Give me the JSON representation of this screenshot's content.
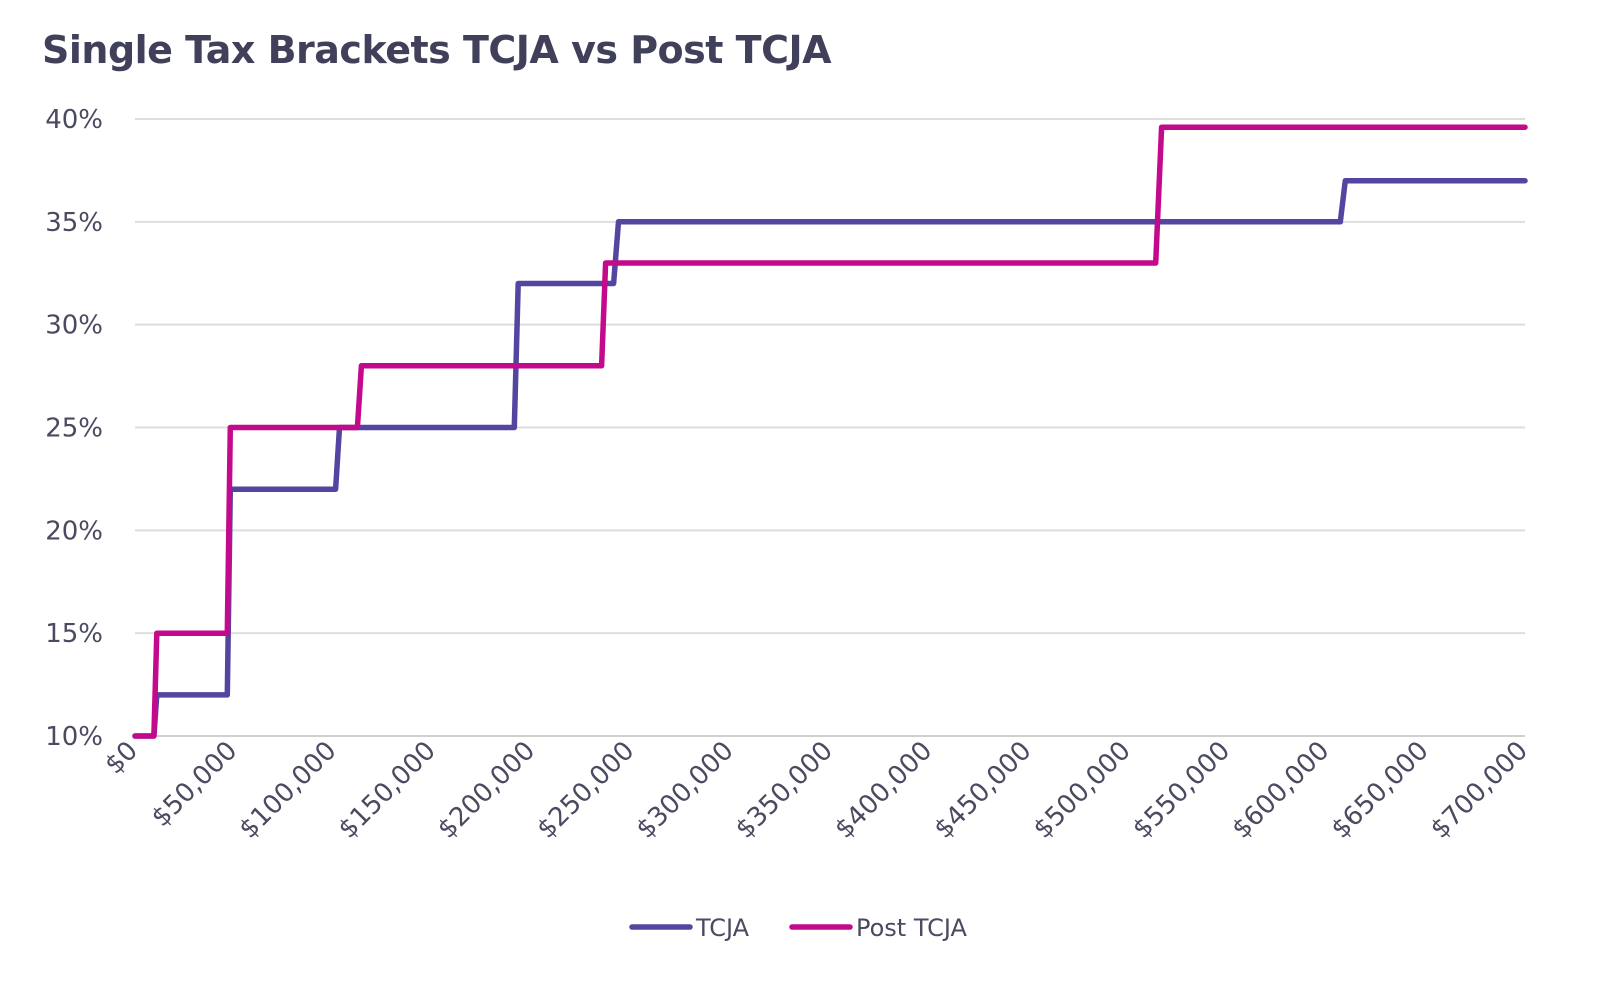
{
  "chart_data": {
    "type": "line",
    "step": true,
    "title": "Single Tax Brackets TCJA vs Post TCJA",
    "xlabel": "",
    "ylabel": "",
    "xlim": [
      0,
      700000
    ],
    "ylim": [
      10,
      40
    ],
    "grid": true,
    "legend": "bottom",
    "x_ticks": [
      "$0",
      "$50,000",
      "$100,000",
      "$150,000",
      "$200,000",
      "$250,000",
      "$300,000",
      "$350,000",
      "$400,000",
      "$450,000",
      "$500,000",
      "$550,000",
      "$600,000",
      "$650,000",
      "$700,000"
    ],
    "y_ticks": [
      "10%",
      "15%",
      "20%",
      "25%",
      "30%",
      "35%",
      "40%"
    ],
    "series": [
      {
        "name": "TCJA",
        "color": "#5246a0",
        "points": [
          [
            0,
            10
          ],
          [
            9500,
            10
          ],
          [
            11000,
            12
          ],
          [
            46500,
            12
          ],
          [
            48000,
            22
          ],
          [
            101000,
            22
          ],
          [
            103000,
            25
          ],
          [
            191000,
            25
          ],
          [
            193000,
            32
          ],
          [
            241000,
            32
          ],
          [
            243500,
            35
          ],
          [
            607000,
            35
          ],
          [
            609500,
            37
          ],
          [
            700000,
            37
          ]
        ]
      },
      {
        "name": "Post TCJA",
        "color": "#c30a8c",
        "points": [
          [
            0,
            10
          ],
          [
            9500,
            10
          ],
          [
            11000,
            15
          ],
          [
            46500,
            15
          ],
          [
            48000,
            25
          ],
          [
            112000,
            25
          ],
          [
            114000,
            28
          ],
          [
            235000,
            28
          ],
          [
            237000,
            33
          ],
          [
            514000,
            33
          ],
          [
            517000,
            39.6
          ],
          [
            700000,
            39.6
          ]
        ]
      }
    ]
  }
}
